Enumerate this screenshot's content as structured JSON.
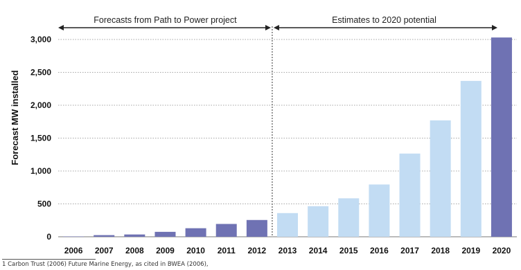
{
  "chart_data": {
    "type": "bar",
    "categories": [
      "2006",
      "2007",
      "2008",
      "2009",
      "2010",
      "2011",
      "2012",
      "2013",
      "2014",
      "2015",
      "2016",
      "2017",
      "2018",
      "2019",
      "2020"
    ],
    "values": [
      5,
      25,
      35,
      75,
      130,
      195,
      255,
      360,
      465,
      585,
      795,
      1265,
      1770,
      2370,
      3030
    ],
    "bar_colors": [
      "#6f72b3",
      "#6f72b3",
      "#6f72b3",
      "#6f72b3",
      "#6f72b3",
      "#6f72b3",
      "#6f72b3",
      "#c2dcf3",
      "#c2dcf3",
      "#c2dcf3",
      "#c2dcf3",
      "#c2dcf3",
      "#c2dcf3",
      "#c2dcf3",
      "#6f72b3"
    ],
    "ylabel": "Forecast MW installed",
    "ylim": [
      0,
      3000
    ],
    "yticks": [
      0,
      500,
      1000,
      1500,
      2000,
      2500,
      3000
    ],
    "ytick_labels": [
      "0",
      "500",
      "1,000",
      "1,500",
      "2,000",
      "2,500",
      "3,000"
    ],
    "grid": true,
    "annotations": {
      "left": "Forecasts from Path to Power project",
      "right": "Estimates to 2020 potential"
    }
  },
  "footnote": "1 Carbon Trust (2006) Future Marine Energy, as cited in BWEA (2006),"
}
